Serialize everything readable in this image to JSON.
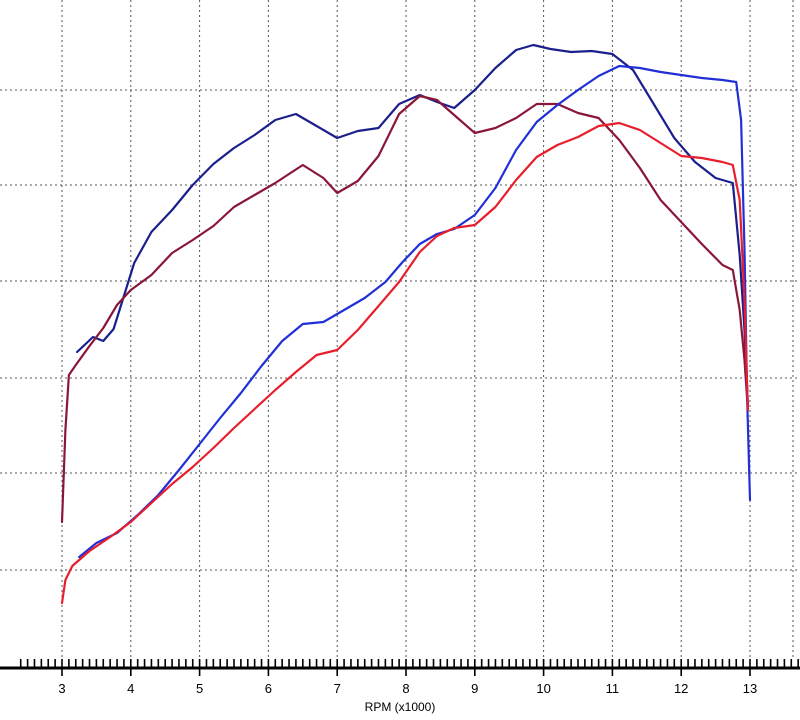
{
  "chart_data": {
    "type": "line",
    "title": "",
    "xlabel": "RPM (x1000)",
    "ylabel": "",
    "xlim": [
      3,
      13
    ],
    "x_ticks": [
      3,
      4,
      5,
      6,
      7,
      8,
      9,
      10,
      11,
      12,
      13
    ],
    "x_tick_labels": [
      "3",
      "4",
      "5",
      "6",
      "7",
      "8",
      "9",
      "10",
      "11",
      "12",
      "13"
    ],
    "grid": true,
    "grid_style": "dotted",
    "axis_color": "#000000",
    "series": [
      {
        "color": "#1a1f8c",
        "points": [
          [
            3.22,
            352
          ],
          [
            3.45,
            337
          ],
          [
            3.6,
            341
          ],
          [
            3.75,
            329
          ],
          [
            3.9,
            296
          ],
          [
            4.05,
            263
          ],
          [
            4.3,
            232
          ],
          [
            4.6,
            210
          ],
          [
            4.9,
            185
          ],
          [
            5.2,
            164
          ],
          [
            5.5,
            148
          ],
          [
            5.8,
            135
          ],
          [
            6.1,
            120
          ],
          [
            6.4,
            114
          ],
          [
            6.7,
            126
          ],
          [
            7.0,
            138
          ],
          [
            7.3,
            131
          ],
          [
            7.6,
            128
          ],
          [
            7.9,
            104
          ],
          [
            8.2,
            95
          ],
          [
            8.45,
            102
          ],
          [
            8.7,
            108
          ],
          [
            9.0,
            90
          ],
          [
            9.3,
            68
          ],
          [
            9.6,
            50
          ],
          [
            9.85,
            45
          ],
          [
            10.1,
            49
          ],
          [
            10.4,
            52
          ],
          [
            10.7,
            51
          ],
          [
            11.0,
            54
          ],
          [
            11.3,
            70
          ],
          [
            11.6,
            104
          ],
          [
            11.9,
            138
          ],
          [
            12.2,
            162
          ],
          [
            12.5,
            178
          ],
          [
            12.75,
            183
          ],
          [
            12.85,
            255
          ],
          [
            12.92,
            330
          ],
          [
            12.97,
            405
          ]
        ]
      },
      {
        "color": "#8a1638",
        "points": [
          [
            3.0,
            522
          ],
          [
            3.05,
            430
          ],
          [
            3.1,
            375
          ],
          [
            3.2,
            365
          ],
          [
            3.4,
            346
          ],
          [
            3.6,
            328
          ],
          [
            3.8,
            305
          ],
          [
            4.0,
            290
          ],
          [
            4.3,
            275
          ],
          [
            4.6,
            253
          ],
          [
            4.9,
            240
          ],
          [
            5.2,
            226
          ],
          [
            5.5,
            207
          ],
          [
            5.8,
            195
          ],
          [
            6.1,
            183
          ],
          [
            6.3,
            174
          ],
          [
            6.5,
            165
          ],
          [
            6.8,
            178
          ],
          [
            7.0,
            193
          ],
          [
            7.3,
            181
          ],
          [
            7.6,
            156
          ],
          [
            7.9,
            114
          ],
          [
            8.2,
            96
          ],
          [
            8.45,
            100
          ],
          [
            8.75,
            118
          ],
          [
            9.0,
            133
          ],
          [
            9.3,
            128
          ],
          [
            9.6,
            118
          ],
          [
            9.9,
            104
          ],
          [
            10.2,
            104
          ],
          [
            10.5,
            113
          ],
          [
            10.8,
            118
          ],
          [
            11.1,
            140
          ],
          [
            11.4,
            168
          ],
          [
            11.7,
            200
          ],
          [
            12.0,
            222
          ],
          [
            12.3,
            244
          ],
          [
            12.6,
            265
          ],
          [
            12.75,
            270
          ],
          [
            12.85,
            310
          ],
          [
            12.92,
            360
          ],
          [
            12.97,
            410
          ]
        ]
      },
      {
        "color": "#2030d6",
        "points": [
          [
            3.25,
            557
          ],
          [
            3.5,
            543
          ],
          [
            3.8,
            533
          ],
          [
            4.1,
            515
          ],
          [
            4.4,
            495
          ],
          [
            4.7,
            470
          ],
          [
            5.0,
            444
          ],
          [
            5.3,
            418
          ],
          [
            5.6,
            393
          ],
          [
            5.9,
            366
          ],
          [
            6.2,
            341
          ],
          [
            6.5,
            324
          ],
          [
            6.8,
            322
          ],
          [
            7.1,
            310
          ],
          [
            7.4,
            298
          ],
          [
            7.7,
            282
          ],
          [
            7.95,
            262
          ],
          [
            8.2,
            244
          ],
          [
            8.45,
            234
          ],
          [
            8.7,
            229
          ],
          [
            9.0,
            215
          ],
          [
            9.3,
            188
          ],
          [
            9.6,
            150
          ],
          [
            9.9,
            122
          ],
          [
            10.2,
            105
          ],
          [
            10.5,
            90
          ],
          [
            10.8,
            76
          ],
          [
            11.1,
            66
          ],
          [
            11.4,
            68
          ],
          [
            11.7,
            72
          ],
          [
            12.0,
            75
          ],
          [
            12.3,
            78
          ],
          [
            12.6,
            80
          ],
          [
            12.8,
            82
          ],
          [
            12.87,
            120
          ],
          [
            12.92,
            250
          ],
          [
            12.96,
            400
          ],
          [
            13.0,
            500
          ]
        ]
      },
      {
        "color": "#e81e2c",
        "points": [
          [
            3.0,
            603
          ],
          [
            3.05,
            580
          ],
          [
            3.15,
            566
          ],
          [
            3.4,
            551
          ],
          [
            3.7,
            537
          ],
          [
            4.0,
            522
          ],
          [
            4.3,
            503
          ],
          [
            4.6,
            484
          ],
          [
            4.9,
            467
          ],
          [
            5.2,
            448
          ],
          [
            5.5,
            428
          ],
          [
            5.8,
            409
          ],
          [
            6.1,
            390
          ],
          [
            6.4,
            372
          ],
          [
            6.7,
            355
          ],
          [
            7.0,
            350
          ],
          [
            7.3,
            330
          ],
          [
            7.6,
            306
          ],
          [
            7.9,
            282
          ],
          [
            8.2,
            252
          ],
          [
            8.45,
            236
          ],
          [
            8.7,
            228
          ],
          [
            9.0,
            225
          ],
          [
            9.3,
            207
          ],
          [
            9.6,
            180
          ],
          [
            9.9,
            157
          ],
          [
            10.2,
            145
          ],
          [
            10.5,
            137
          ],
          [
            10.8,
            126
          ],
          [
            11.1,
            123
          ],
          [
            11.4,
            130
          ],
          [
            11.7,
            143
          ],
          [
            12.0,
            156
          ],
          [
            12.3,
            158
          ],
          [
            12.6,
            162
          ],
          [
            12.75,
            165
          ],
          [
            12.85,
            200
          ],
          [
            12.92,
            300
          ],
          [
            12.97,
            410
          ]
        ]
      }
    ]
  }
}
